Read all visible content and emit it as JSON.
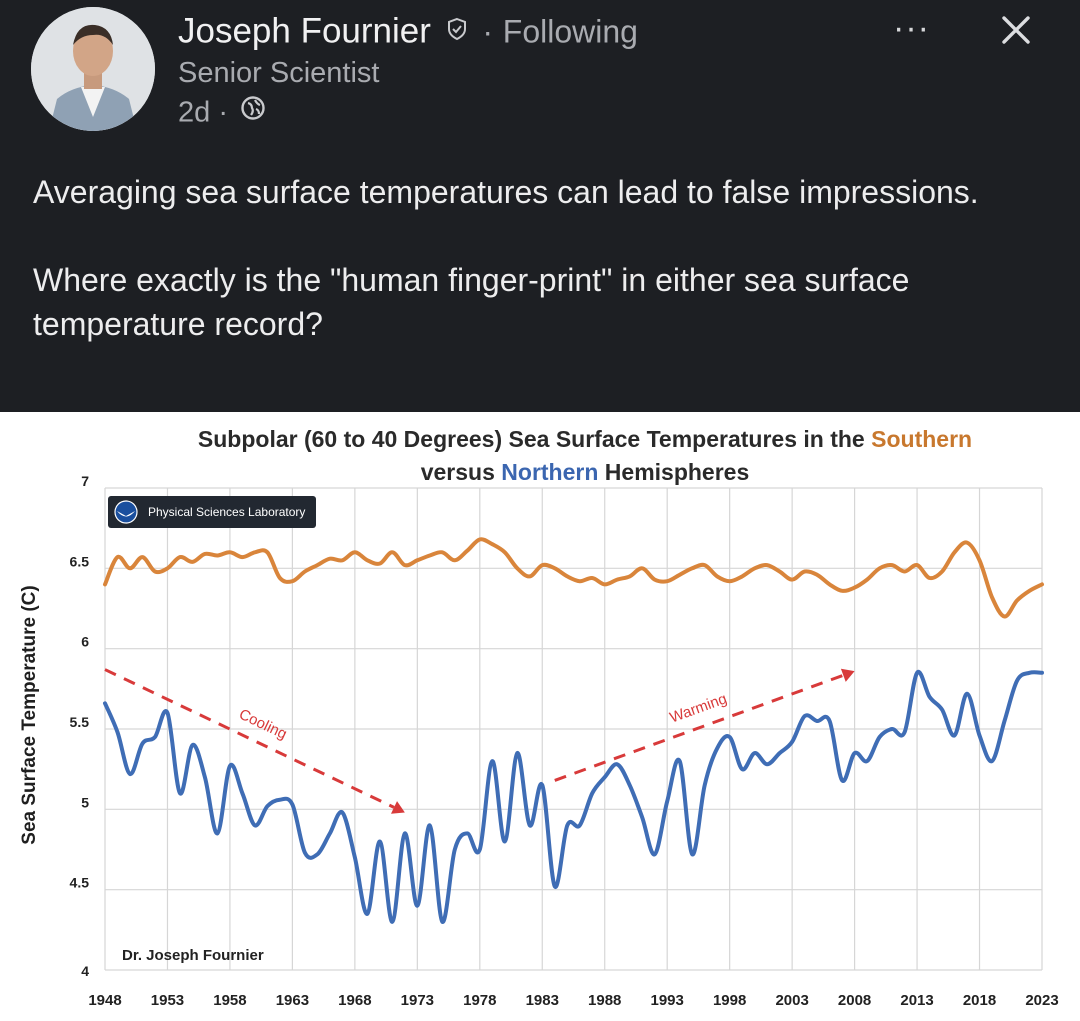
{
  "post": {
    "author_name": "Joseph Fournier",
    "separator": "·",
    "follow_status": "Following",
    "author_title": "Senior Scientist",
    "time_ago": "2d",
    "more_label": "···",
    "text_para1": "Averaging sea surface temperatures can lead to false impressions.",
    "text_para2": "Where exactly is the \"human finger-print\" in either sea surface temperature record?",
    "icons": [
      "verified-badge-icon",
      "globe-icon",
      "more-options-icon",
      "close-icon",
      "avatar-photo"
    ]
  },
  "chart_data": {
    "type": "line",
    "title_part1": "Subpolar (60 to 40 Degrees) Sea Surface Temperatures in the ",
    "title_southern": "Southern",
    "title_part2": "versus ",
    "title_northern": "Northern",
    "title_part3": " Hemispheres",
    "ylabel": "Sea Surface Temperature (C)",
    "xlabel": "",
    "ylim": [
      4,
      7
    ],
    "xlim": [
      1948,
      2023
    ],
    "y_ticks": [
      "4",
      "4.5",
      "5",
      "5.5",
      "6",
      "6.5",
      "7"
    ],
    "x_ticks": [
      "1948",
      "1953",
      "1958",
      "1963",
      "1968",
      "1973",
      "1978",
      "1983",
      "1988",
      "1993",
      "1998",
      "2003",
      "2008",
      "2013",
      "2018",
      "2023"
    ],
    "grid": true,
    "x": [
      1948,
      1949,
      1950,
      1951,
      1952,
      1953,
      1954,
      1955,
      1956,
      1957,
      1958,
      1959,
      1960,
      1961,
      1962,
      1963,
      1964,
      1965,
      1966,
      1967,
      1968,
      1969,
      1970,
      1971,
      1972,
      1973,
      1974,
      1975,
      1976,
      1977,
      1978,
      1979,
      1980,
      1981,
      1982,
      1983,
      1984,
      1985,
      1986,
      1987,
      1988,
      1989,
      1990,
      1991,
      1992,
      1993,
      1994,
      1995,
      1996,
      1997,
      1998,
      1999,
      2000,
      2001,
      2002,
      2003,
      2004,
      2005,
      2006,
      2007,
      2008,
      2009,
      2010,
      2011,
      2012,
      2013,
      2014,
      2015,
      2016,
      2017,
      2018,
      2019,
      2020,
      2021,
      2022,
      2023
    ],
    "series": [
      {
        "name": "Southern",
        "color": "#d9853b",
        "values": [
          6.4,
          6.57,
          6.5,
          6.57,
          6.48,
          6.5,
          6.57,
          6.54,
          6.59,
          6.58,
          6.6,
          6.57,
          6.6,
          6.6,
          6.44,
          6.42,
          6.48,
          6.52,
          6.56,
          6.55,
          6.6,
          6.55,
          6.53,
          6.6,
          6.52,
          6.55,
          6.58,
          6.6,
          6.55,
          6.61,
          6.68,
          6.65,
          6.6,
          6.5,
          6.45,
          6.52,
          6.5,
          6.45,
          6.42,
          6.44,
          6.4,
          6.43,
          6.45,
          6.5,
          6.43,
          6.42,
          6.46,
          6.5,
          6.52,
          6.45,
          6.42,
          6.45,
          6.5,
          6.52,
          6.48,
          6.43,
          6.48,
          6.46,
          6.4,
          6.36,
          6.38,
          6.43,
          6.5,
          6.52,
          6.48,
          6.52,
          6.44,
          6.48,
          6.6,
          6.66,
          6.55,
          6.32,
          6.2,
          6.3,
          6.36,
          6.4
        ]
      },
      {
        "name": "Northern",
        "color": "#3f6db5",
        "values": [
          5.66,
          5.48,
          5.22,
          5.41,
          5.45,
          5.6,
          5.1,
          5.4,
          5.2,
          4.85,
          5.27,
          5.1,
          4.9,
          5.02,
          5.06,
          5.03,
          4.73,
          4.72,
          4.85,
          4.98,
          4.7,
          4.35,
          4.8,
          4.3,
          4.85,
          4.4,
          4.9,
          4.3,
          4.75,
          4.85,
          4.75,
          5.3,
          4.8,
          5.35,
          4.9,
          5.15,
          4.52,
          4.9,
          4.9,
          5.1,
          5.2,
          5.28,
          5.15,
          4.95,
          4.72,
          5.05,
          5.3,
          4.72,
          5.15,
          5.38,
          5.45,
          5.25,
          5.35,
          5.28,
          5.35,
          5.42,
          5.58,
          5.55,
          5.55,
          5.18,
          5.35,
          5.3,
          5.45,
          5.5,
          5.48,
          5.85,
          5.7,
          5.62,
          5.46,
          5.72,
          5.46,
          5.3,
          5.55,
          5.8,
          5.85,
          5.85
        ]
      }
    ],
    "annotations": [
      {
        "text": "Cooling",
        "color": "#d83a3a",
        "x_start": 1948,
        "y_start": 5.87,
        "x_end": 1972,
        "y_end": 4.98
      },
      {
        "text": "Warming",
        "color": "#d83a3a",
        "x_start": 1984,
        "y_start": 5.18,
        "x_end": 2008,
        "y_end": 5.86
      }
    ],
    "logo_label": "Physical Sciences Laboratory",
    "credit": "Dr. Joseph Fournier"
  }
}
